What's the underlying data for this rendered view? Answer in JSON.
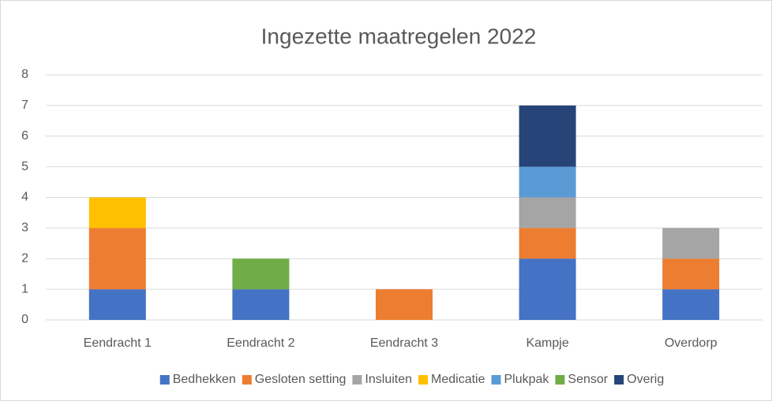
{
  "chart_data": {
    "type": "bar",
    "stacked": true,
    "title": "Ingezette maatregelen 2022",
    "categories": [
      "Eendracht 1",
      "Eendracht 2",
      "Eendracht 3",
      "Kampje",
      "Overdorp"
    ],
    "series": [
      {
        "name": "Bedhekken",
        "color": "#4472c4",
        "values": [
          1,
          1,
          0,
          2,
          1
        ]
      },
      {
        "name": "Gesloten setting",
        "color": "#ed7d31",
        "values": [
          2,
          0,
          1,
          1,
          1
        ]
      },
      {
        "name": "Insluiten",
        "color": "#a5a5a5",
        "values": [
          0,
          0,
          0,
          1,
          1
        ]
      },
      {
        "name": "Medicatie",
        "color": "#ffc000",
        "values": [
          1,
          0,
          0,
          0,
          0
        ]
      },
      {
        "name": "Plukpak",
        "color": "#5b9bd5",
        "values": [
          0,
          0,
          0,
          1,
          0
        ]
      },
      {
        "name": "Sensor",
        "color": "#70ad47",
        "values": [
          0,
          1,
          0,
          0,
          0
        ]
      },
      {
        "name": "Overig",
        "color": "#264478",
        "values": [
          0,
          0,
          0,
          2,
          0
        ]
      }
    ],
    "ylim": [
      0,
      8
    ],
    "yticks": [
      0,
      1,
      2,
      3,
      4,
      5,
      6,
      7,
      8
    ],
    "grid": true,
    "legend": "bottom"
  }
}
